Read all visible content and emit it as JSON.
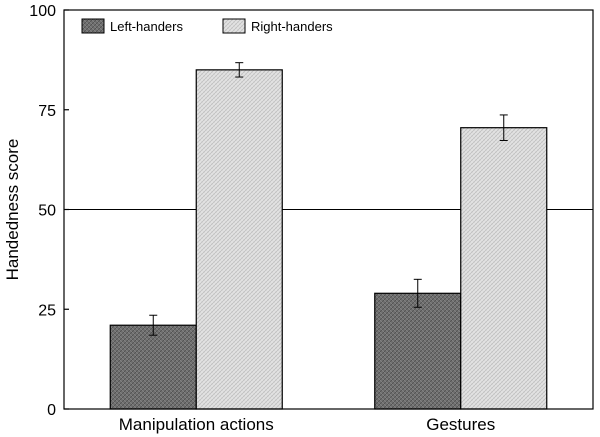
{
  "chart_data": {
    "type": "bar",
    "title": "",
    "xlabel": "",
    "ylabel": "Handedness score",
    "ylim": [
      0,
      100
    ],
    "yticks": [
      "0",
      "25",
      "50",
      "75",
      "100"
    ],
    "categories": [
      "Manipulation actions",
      "Gestures"
    ],
    "series": [
      {
        "name": "Left-handers",
        "values": [
          21,
          29
        ],
        "errors": [
          2.5,
          3.5
        ],
        "color": "#6e6e6e",
        "pattern": "dark-crosshatch"
      },
      {
        "name": "Right-handers",
        "values": [
          85,
          70.5
        ],
        "errors": [
          1.8,
          3.2
        ],
        "color": "#d9d9d9",
        "pattern": "light-crosshatch"
      }
    ],
    "reference_line": 50,
    "legend": "top-left",
    "grid": false
  }
}
